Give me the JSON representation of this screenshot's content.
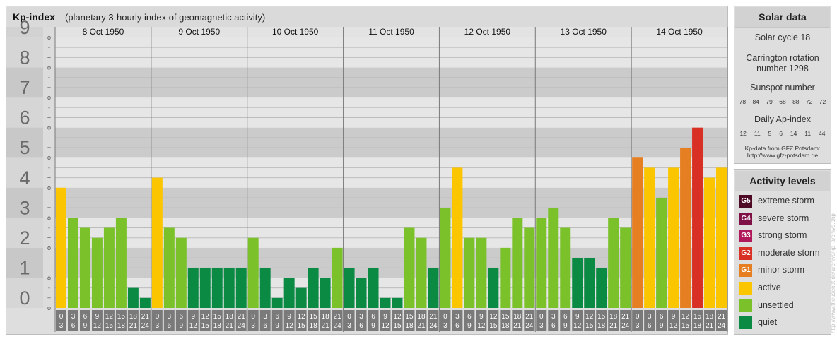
{
  "title": {
    "main": "Kp-index",
    "sub": "(planetary 3-hourly index of geomagnetic activity)"
  },
  "chart_data": {
    "type": "bar",
    "ylim": [
      0,
      9
    ],
    "y_ticks": [
      "0",
      "1",
      "2",
      "3",
      "4",
      "5",
      "6",
      "7",
      "8",
      "9"
    ],
    "sublevel_labels": [
      "-",
      "o",
      "+"
    ],
    "days": [
      "8 Oct 1950",
      "9 Oct 1950",
      "10 Oct 1950",
      "11 Oct 1950",
      "12 Oct 1950",
      "13 Oct 1950",
      "14 Oct 1950"
    ],
    "slot_labels": [
      [
        "0",
        "3"
      ],
      [
        "3",
        "6"
      ],
      [
        "6",
        "9"
      ],
      [
        "9",
        "12"
      ],
      [
        "12",
        "15"
      ],
      [
        "15",
        "18"
      ],
      [
        "18",
        "21"
      ],
      [
        "21",
        "24"
      ]
    ],
    "values": [
      [
        4.0,
        3.0,
        2.667,
        2.333,
        2.667,
        3.0,
        0.667,
        0.333
      ],
      [
        4.333,
        2.667,
        2.333,
        1.333,
        1.333,
        1.333,
        1.333,
        1.333
      ],
      [
        2.333,
        1.333,
        0.333,
        1.0,
        0.667,
        1.333,
        1.0,
        2.0
      ],
      [
        1.333,
        1.0,
        1.333,
        0.333,
        0.333,
        2.667,
        2.333,
        1.333
      ],
      [
        3.333,
        4.667,
        2.333,
        2.333,
        1.333,
        2.0,
        3.0,
        2.667
      ],
      [
        3.0,
        3.333,
        2.667,
        1.667,
        1.667,
        1.333,
        3.0,
        2.667
      ],
      [
        5.0,
        4.667,
        3.667,
        4.667,
        5.333,
        6.0,
        4.333,
        4.667
      ]
    ]
  },
  "colors": {
    "quiet": "#0b8a44",
    "unsettled": "#7bc12a",
    "active": "#fbc600",
    "g1": "#e67e22",
    "g2": "#d93025",
    "g3": "#b0185b",
    "g4": "#7e1046",
    "g5": "#4e0a24"
  },
  "solar": {
    "header": "Solar data",
    "cycle": "Solar cycle 18",
    "carrington_1": "Carrington rotation",
    "carrington_2": "number 1298",
    "sunspot_label": "Sunspot number",
    "sunspot": [
      "78",
      "84",
      "79",
      "68",
      "88",
      "72",
      "72"
    ],
    "ap_label": "Daily Ap-index",
    "ap": [
      "12",
      "11",
      "5",
      "6",
      "14",
      "11",
      "44"
    ],
    "source_1": "Kp-data from GFZ Potsdam:",
    "source_2": "http://www.gfz-potsdam.de"
  },
  "legend": {
    "header": "Activity levels",
    "items": [
      {
        "code": "G5",
        "label": "extreme storm",
        "color": "#4e0a24"
      },
      {
        "code": "G4",
        "label": "severe storm",
        "color": "#7e1046"
      },
      {
        "code": "G3",
        "label": "strong storm",
        "color": "#b0185b"
      },
      {
        "code": "G2",
        "label": "moderate storm",
        "color": "#d93025"
      },
      {
        "code": "G1",
        "label": "minor storm",
        "color": "#e67e22"
      },
      {
        "code": "",
        "label": "active",
        "color": "#fbc600"
      },
      {
        "code": "",
        "label": "unsettled",
        "color": "#7bc12a"
      },
      {
        "code": "",
        "label": "quiet",
        "color": "#0b8a44"
      }
    ]
  },
  "watermark": "http://www.theusenet.de/archive/kp_archive.php"
}
